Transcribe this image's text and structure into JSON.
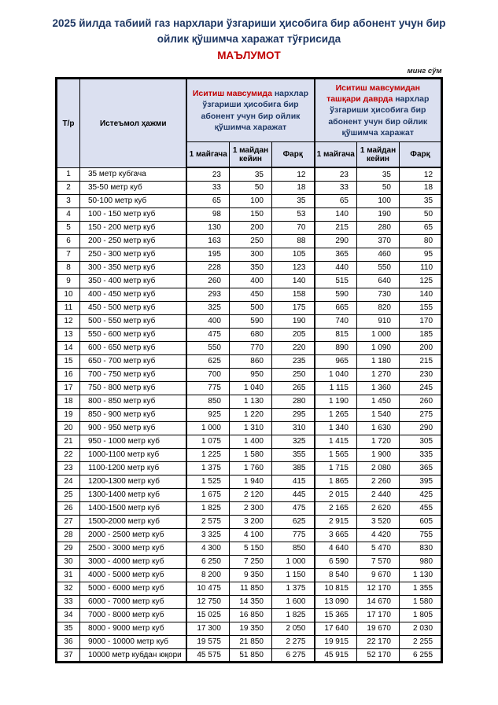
{
  "doc": {
    "title": "2025 йилда табиий газ нархлари ўзгариши ҳисобига бир абонент учун бир ойлик қўшимча харажат тўғрисида",
    "subtitle": "МАЪЛУМОТ",
    "unit_note": "минг сўм"
  },
  "colors": {
    "title_navy": "#1f3864",
    "accent_red": "#c00000",
    "header_bg": "#dbe0f0",
    "border": "#000000"
  },
  "table": {
    "header": {
      "row_col": "Т/р",
      "volume_col": "Истеъмол ҳажми",
      "group1_highlight": "Иситиш мавсумида",
      "group1_rest": "нархлар ўзгариши ҳисобига бир абонент учун бир ойлик қўшимча харажат",
      "group2_highlight": "Иситиш мавсумидан ташқари даврда",
      "group2_rest": "нархлар ўзгариши ҳисобига бир абонент учун бир ойлик қўшимча харажат",
      "subcols": [
        "1 майгача",
        "1 майдан кейин",
        "Фарқ"
      ]
    },
    "rows": [
      [
        "1",
        "35 метр кубгача",
        "23",
        "35",
        "12",
        "23",
        "35",
        "12"
      ],
      [
        "2",
        "35-50 метр куб",
        "33",
        "50",
        "18",
        "33",
        "50",
        "18"
      ],
      [
        "3",
        "50-100 метр куб",
        "65",
        "100",
        "35",
        "65",
        "100",
        "35"
      ],
      [
        "4",
        "100 - 150 метр куб",
        "98",
        "150",
        "53",
        "140",
        "190",
        "50"
      ],
      [
        "5",
        "150 - 200 метр куб",
        "130",
        "200",
        "70",
        "215",
        "280",
        "65"
      ],
      [
        "6",
        "200 - 250 метр куб",
        "163",
        "250",
        "88",
        "290",
        "370",
        "80"
      ],
      [
        "7",
        "250 - 300 метр куб",
        "195",
        "300",
        "105",
        "365",
        "460",
        "95"
      ],
      [
        "8",
        "300 - 350 метр куб",
        "228",
        "350",
        "123",
        "440",
        "550",
        "110"
      ],
      [
        "9",
        "350 - 400 метр куб",
        "260",
        "400",
        "140",
        "515",
        "640",
        "125"
      ],
      [
        "10",
        "400 - 450 метр куб",
        "293",
        "450",
        "158",
        "590",
        "730",
        "140"
      ],
      [
        "11",
        "450 - 500 метр куб",
        "325",
        "500",
        "175",
        "665",
        "820",
        "155"
      ],
      [
        "12",
        "500 - 550 метр куб",
        "400",
        "590",
        "190",
        "740",
        "910",
        "170"
      ],
      [
        "13",
        "550 - 600 метр куб",
        "475",
        "680",
        "205",
        "815",
        "1 000",
        "185"
      ],
      [
        "14",
        "600 - 650 метр куб",
        "550",
        "770",
        "220",
        "890",
        "1 090",
        "200"
      ],
      [
        "15",
        "650 - 700 метр куб",
        "625",
        "860",
        "235",
        "965",
        "1 180",
        "215"
      ],
      [
        "16",
        "700 - 750 метр куб",
        "700",
        "950",
        "250",
        "1 040",
        "1 270",
        "230"
      ],
      [
        "17",
        "750 - 800 метр куб",
        "775",
        "1 040",
        "265",
        "1 115",
        "1 360",
        "245"
      ],
      [
        "18",
        "800 - 850 метр куб",
        "850",
        "1 130",
        "280",
        "1 190",
        "1 450",
        "260"
      ],
      [
        "19",
        "850 - 900 метр куб",
        "925",
        "1 220",
        "295",
        "1 265",
        "1 540",
        "275"
      ],
      [
        "20",
        "900 - 950 метр куб",
        "1 000",
        "1 310",
        "310",
        "1 340",
        "1 630",
        "290"
      ],
      [
        "21",
        "950 - 1000 метр куб",
        "1 075",
        "1 400",
        "325",
        "1 415",
        "1 720",
        "305"
      ],
      [
        "22",
        "1000-1100 метр куб",
        "1 225",
        "1 580",
        "355",
        "1 565",
        "1 900",
        "335"
      ],
      [
        "23",
        "1100-1200 метр куб",
        "1 375",
        "1 760",
        "385",
        "1 715",
        "2 080",
        "365"
      ],
      [
        "24",
        "1200-1300 метр куб",
        "1 525",
        "1 940",
        "415",
        "1 865",
        "2 260",
        "395"
      ],
      [
        "25",
        "1300-1400 метр куб",
        "1 675",
        "2 120",
        "445",
        "2 015",
        "2 440",
        "425"
      ],
      [
        "26",
        "1400-1500 метр куб",
        "1 825",
        "2 300",
        "475",
        "2 165",
        "2 620",
        "455"
      ],
      [
        "27",
        "1500-2000 метр куб",
        "2 575",
        "3 200",
        "625",
        "2 915",
        "3 520",
        "605"
      ],
      [
        "28",
        "2000 - 2500 метр куб",
        "3 325",
        "4 100",
        "775",
        "3 665",
        "4 420",
        "755"
      ],
      [
        "29",
        "2500 - 3000 метр куб",
        "4 300",
        "5 150",
        "850",
        "4 640",
        "5 470",
        "830"
      ],
      [
        "30",
        "3000 - 4000 метр куб",
        "6 250",
        "7 250",
        "1 000",
        "6 590",
        "7 570",
        "980"
      ],
      [
        "31",
        "4000 - 5000 метр куб",
        "8 200",
        "9 350",
        "1 150",
        "8 540",
        "9 670",
        "1 130"
      ],
      [
        "32",
        "5000 - 6000 метр куб",
        "10 475",
        "11 850",
        "1 375",
        "10 815",
        "12 170",
        "1 355"
      ],
      [
        "33",
        "6000 - 7000 метр куб",
        "12 750",
        "14 350",
        "1 600",
        "13 090",
        "14 670",
        "1 580"
      ],
      [
        "34",
        "7000 - 8000 метр куб",
        "15 025",
        "16 850",
        "1 825",
        "15 365",
        "17 170",
        "1 805"
      ],
      [
        "35",
        "8000 - 9000 метр куб",
        "17 300",
        "19 350",
        "2 050",
        "17 640",
        "19 670",
        "2 030"
      ],
      [
        "36",
        "9000 - 10000 метр куб",
        "19 575",
        "21 850",
        "2 275",
        "19 915",
        "22 170",
        "2 255"
      ],
      [
        "37",
        "10000 метр кубдан юқори",
        "45 575",
        "51 850",
        "6 275",
        "45 915",
        "52 170",
        "6 255"
      ]
    ]
  }
}
